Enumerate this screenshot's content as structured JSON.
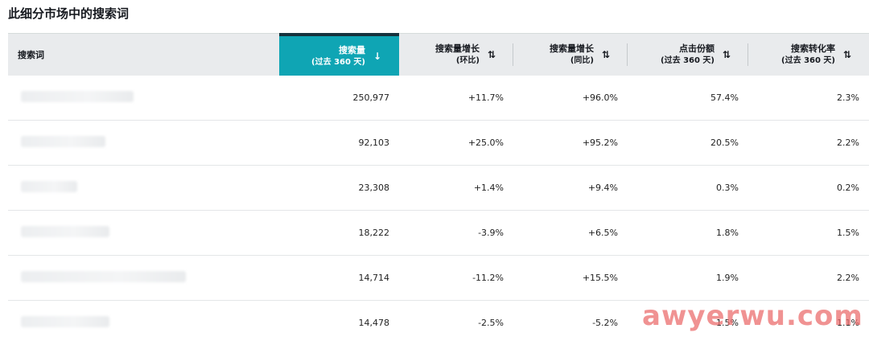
{
  "title": "此细分市场中的搜索词",
  "columns": [
    {
      "label": "搜索词",
      "sub": ""
    },
    {
      "label": "搜索量",
      "sub": "(过去 360 天)",
      "sort_icon": "↓"
    },
    {
      "label": "搜索量增长",
      "sub": "(环比)",
      "sort_icon": "⇅"
    },
    {
      "label": "搜索量增长",
      "sub": "(同比)",
      "sort_icon": "⇅"
    },
    {
      "label": "点击份额",
      "sub": "(过去 360 天)",
      "sort_icon": "⇅"
    },
    {
      "label": "搜索转化率",
      "sub": "(过去 360 天)",
      "sort_icon": "⇅"
    }
  ],
  "rows": [
    {
      "volume": "250,977",
      "qoq": "+11.7%",
      "yoy": "+96.0%",
      "click_share": "57.4%",
      "conversion": "2.3%"
    },
    {
      "volume": "92,103",
      "qoq": "+25.0%",
      "yoy": "+95.2%",
      "click_share": "20.5%",
      "conversion": "2.2%"
    },
    {
      "volume": "23,308",
      "qoq": "+1.4%",
      "yoy": "+9.4%",
      "click_share": "0.3%",
      "conversion": "0.2%"
    },
    {
      "volume": "18,222",
      "qoq": "-3.9%",
      "yoy": "+6.5%",
      "click_share": "1.8%",
      "conversion": "1.5%"
    },
    {
      "volume": "14,714",
      "qoq": "-11.2%",
      "yoy": "+15.5%",
      "click_share": "1.9%",
      "conversion": "2.2%"
    },
    {
      "volume": "14,478",
      "qoq": "-2.5%",
      "yoy": "-5.2%",
      "click_share": "1.5%",
      "conversion": "1.1%"
    }
  ],
  "watermark": "awyerwu.com"
}
